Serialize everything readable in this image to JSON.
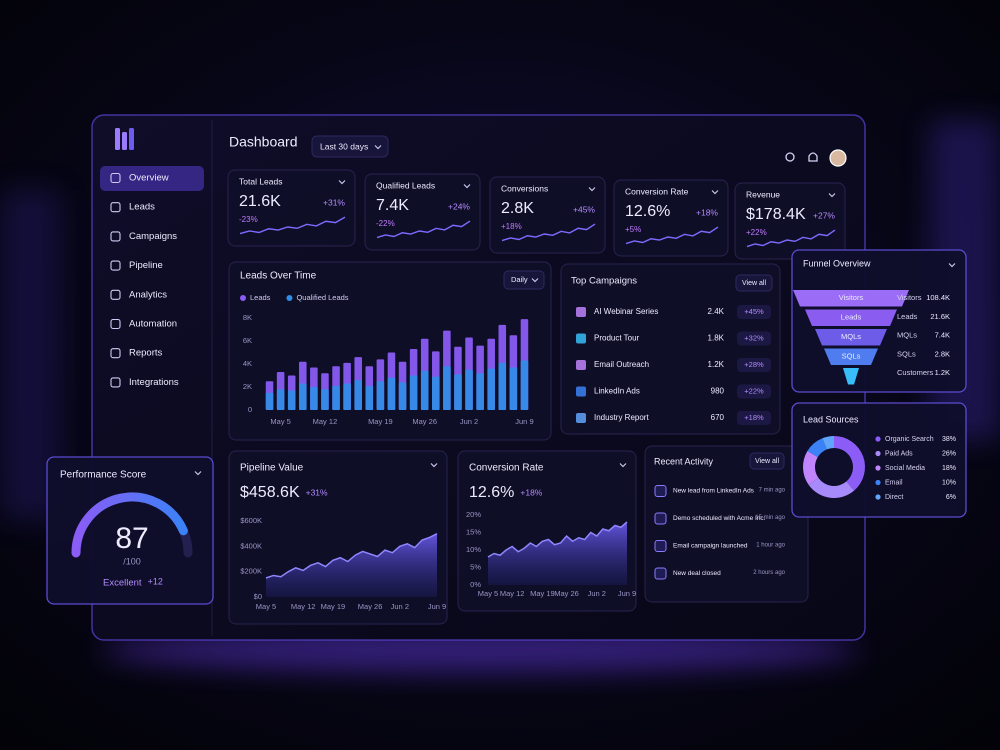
{
  "sidebar": {
    "nav": [
      "Overview",
      "Leads",
      "Campaigns",
      "Pipeline",
      "Analytics",
      "Automation",
      "Reports",
      "Integrations"
    ]
  },
  "header": {
    "title": "Dashboard",
    "range": "Last 30 days"
  },
  "kpis": [
    {
      "label": "Total Leads",
      "value": "21.6K",
      "change": "+31%",
      "delta": "-23%"
    },
    {
      "label": "Qualified Leads",
      "value": "7.4K",
      "change": "+24%",
      "delta": "-22%"
    },
    {
      "label": "Conversions",
      "value": "2.8K",
      "change": "+45%",
      "delta": "+18%"
    },
    {
      "label": "Conversion Rate",
      "value": "12.6%",
      "change": "+18%",
      "delta": "+5%"
    },
    {
      "label": "Revenue",
      "value": "$178.4K",
      "change": "+27%",
      "delta": "+22%"
    }
  ],
  "leads_over_time": {
    "type": "bar",
    "title": "Leads Over Time",
    "interval": "Daily",
    "categories": [
      null,
      "May 5",
      null,
      null,
      null,
      "May 12",
      null,
      null,
      null,
      null,
      "May 19",
      null,
      null,
      null,
      "May 26",
      null,
      null,
      null,
      "Jun 2",
      null,
      null,
      null,
      null,
      "Jun 9"
    ],
    "series": [
      {
        "name": "Leads",
        "color": "#8b5cf6",
        "values": [
          2500,
          3300,
          3000,
          4200,
          3700,
          3200,
          3800,
          4100,
          4600,
          3800,
          4400,
          5000,
          4200,
          5300,
          6200,
          5100,
          6900,
          5500,
          6300,
          5600,
          6200,
          7400,
          6500,
          7900
        ]
      },
      {
        "name": "Qualified Leads",
        "color": "#2f8fe8",
        "values": [
          1500,
          1800,
          1700,
          2300,
          2000,
          1800,
          2100,
          2300,
          2600,
          2100,
          2500,
          2800,
          2400,
          3000,
          3400,
          2900,
          3800,
          3100,
          3500,
          3200,
          3600,
          4100,
          3700,
          4300
        ]
      }
    ],
    "ylim": [
      0,
      8000
    ],
    "yticks": [
      0,
      {
        "value": 2000,
        "label": "2K"
      },
      {
        "value": 4000,
        "label": "4K"
      },
      {
        "value": 6000,
        "label": "6K"
      },
      {
        "value": 8000,
        "label": "8K"
      }
    ]
  },
  "pipeline_value": {
    "type": "area",
    "title": "Pipeline Value",
    "total": "$458.6K",
    "change": "+31%",
    "color": "#6d5cf0",
    "categories": [
      "May 5",
      null,
      null,
      null,
      null,
      "May 12",
      null,
      null,
      null,
      "May 19",
      null,
      null,
      null,
      null,
      "May 26",
      null,
      null,
      null,
      "Jun 2",
      null,
      null,
      null,
      null,
      "Jun 9"
    ],
    "values": [
      150000,
      170000,
      160000,
      200000,
      230000,
      210000,
      250000,
      270000,
      240000,
      290000,
      310000,
      280000,
      330000,
      360000,
      340000,
      320000,
      370000,
      350000,
      400000,
      420000,
      390000,
      450000,
      470000,
      500000
    ],
    "ylim": [
      0,
      600000
    ],
    "yticks": [
      {
        "value": 0,
        "label": "$0"
      },
      {
        "value": 200000,
        "label": "$200K"
      },
      {
        "value": 400000,
        "label": "$400K"
      },
      {
        "value": 600000,
        "label": "$600K"
      }
    ]
  },
  "conversion_rate": {
    "type": "area",
    "title": "Conversion Rate",
    "total": "12.6%",
    "change": "+18%",
    "color": "#6d5cf0",
    "categories": [
      "May 5",
      null,
      null,
      null,
      "May 12",
      null,
      null,
      null,
      null,
      "May 19",
      null,
      null,
      null,
      "May 26",
      null,
      null,
      null,
      null,
      "Jun 2",
      null,
      null,
      null,
      null,
      "Jun 9"
    ],
    "values": [
      8,
      9,
      8.5,
      10,
      11,
      9.5,
      10.5,
      12,
      11,
      12.5,
      13,
      11.5,
      12,
      14,
      12.5,
      13.5,
      13,
      15,
      14,
      16,
      15.5,
      17,
      16.5,
      18
    ],
    "ylim": [
      0,
      20
    ],
    "yticks": [
      {
        "value": 0,
        "label": "0%"
      },
      {
        "value": 5,
        "label": "5%"
      },
      {
        "value": 10,
        "label": "10%"
      },
      {
        "value": 15,
        "label": "15%"
      },
      {
        "value": 20,
        "label": "20%"
      }
    ]
  },
  "top_campaigns": {
    "title": "Top Campaigns",
    "action": "View all",
    "rows": [
      [
        "AI Webinar Series",
        "2.4K",
        "+45%"
      ],
      [
        "Product Tour",
        "1.8K",
        "+32%"
      ],
      [
        "Email Outreach",
        "1.2K",
        "+28%"
      ],
      [
        "LinkedIn Ads",
        "980",
        "+22%"
      ],
      [
        "Industry Report",
        "670",
        "+18%"
      ]
    ]
  },
  "recent_activity": {
    "title": "Recent Activity",
    "action": "View all",
    "items": [
      [
        "New lead from LinkedIn Ads",
        "7 min ago"
      ],
      [
        "Demo scheduled with Acme Inc.",
        "15 min ago"
      ],
      [
        "Email campaign launched",
        "1 hour ago"
      ],
      [
        "New deal closed",
        "2 hours ago"
      ]
    ]
  },
  "funnel": {
    "title": "Funnel Overview",
    "stages": [
      [
        "Visitors",
        "108.4K"
      ],
      [
        "Leads",
        "21.6K"
      ],
      [
        "MQLs",
        "7.4K"
      ],
      [
        "SQLs",
        "2.8K"
      ],
      [
        "Customers",
        "1.2K"
      ]
    ]
  },
  "lead_sources": {
    "type": "pie",
    "title": "Lead Sources",
    "categories": [
      "Organic Search",
      "Paid Ads",
      "Social Media",
      "Email",
      "Direct"
    ],
    "values": [
      38,
      26,
      18,
      10,
      6
    ],
    "value_labels": [
      "38%",
      "26%",
      "18%",
      "10%",
      "6%"
    ],
    "colors": [
      "#8b5cf6",
      "#a78bfa",
      "#c084fc",
      "#3b82f6",
      "#60a5fa"
    ]
  },
  "performance": {
    "title": "Performance Score",
    "score": 87,
    "max": {
      "value": 100,
      "label": "/100"
    },
    "rating": "Excellent",
    "change": "+12"
  }
}
